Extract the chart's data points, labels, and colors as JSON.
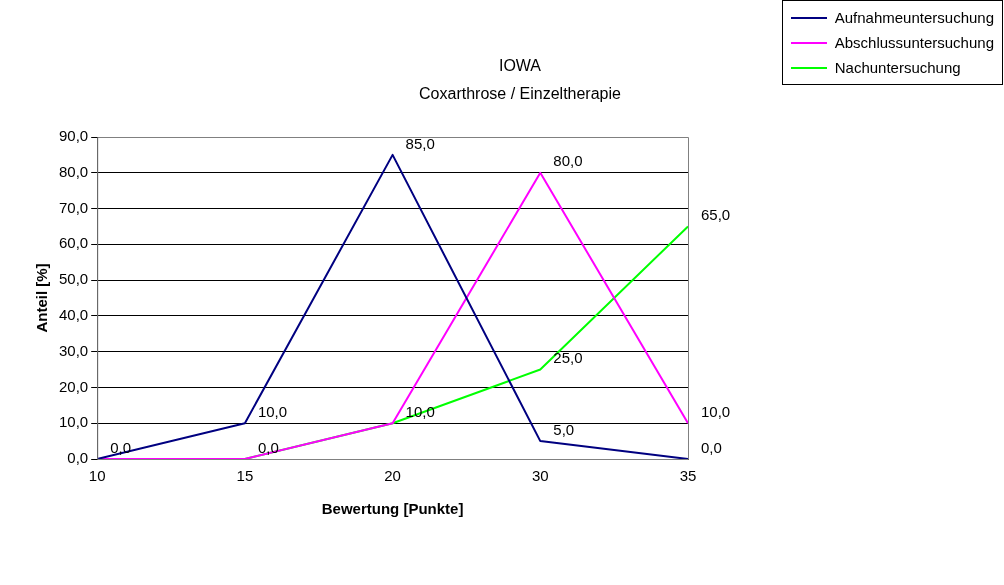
{
  "chart_data": {
    "type": "line",
    "title": "IOWA",
    "subtitle": "Coxarthrose / Einzeltherapie",
    "xlabel": "Bewertung [Punkte]",
    "ylabel": "Anteil [%]",
    "categories": [
      "10",
      "15",
      "20",
      "30",
      "35"
    ],
    "series": [
      {
        "name": "Aufnahmeuntersuchung",
        "color": "#000080",
        "values": [
          0,
          10,
          85,
          5,
          0
        ],
        "value_labels": [
          "0,0",
          "10,0",
          "85,0",
          "5,0",
          "0,0"
        ]
      },
      {
        "name": "Abschlussuntersuchung",
        "color": "#ff00ff",
        "values": [
          0,
          0,
          10,
          80,
          10
        ],
        "value_labels": [
          null,
          null,
          null,
          "80,0",
          "10,0"
        ]
      },
      {
        "name": "Nachuntersuchung",
        "color": "#00ff00",
        "values": [
          0,
          0,
          10,
          25,
          65
        ],
        "value_labels": [
          null,
          "0,0",
          "10,0",
          "25,0",
          "65,0"
        ]
      }
    ],
    "ylim": [
      0,
      90
    ],
    "yticks": [
      {
        "value": 0,
        "label": "0,0"
      },
      {
        "value": 10,
        "label": "10,0"
      },
      {
        "value": 20,
        "label": "20,0"
      },
      {
        "value": 30,
        "label": "30,0"
      },
      {
        "value": 40,
        "label": "40,0"
      },
      {
        "value": 50,
        "label": "50,0"
      },
      {
        "value": 60,
        "label": "60,0"
      },
      {
        "value": 70,
        "label": "70,0"
      },
      {
        "value": 80,
        "label": "80,0"
      },
      {
        "value": 90,
        "label": "90,0"
      }
    ],
    "grid": "y",
    "legend": "top right",
    "marker": "none",
    "line_style": "solid"
  }
}
